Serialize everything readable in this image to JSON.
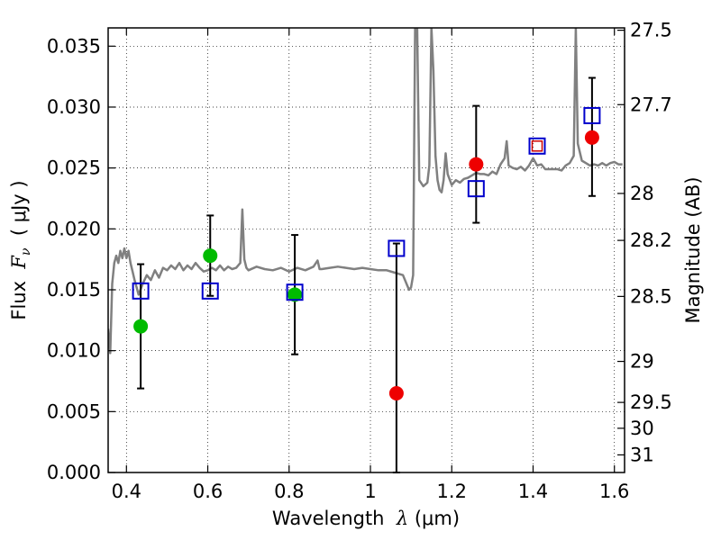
{
  "chart_data": {
    "type": "scatter",
    "xlabel": {
      "pre": "Wavelength  ",
      "sym": "λ",
      "post": " (μm)"
    },
    "ylabel": {
      "pre": "Flux  ",
      "sym": "F",
      "sub": "ν",
      "post": "  ( μJy )"
    },
    "ylabel_right": "Magnitude (AB)",
    "xlim": [
      0.355,
      1.625
    ],
    "ylim": [
      0,
      0.0365
    ],
    "grid": true,
    "x_ticks": [
      {
        "v": 0.4,
        "label": "0.4"
      },
      {
        "v": 0.6,
        "label": "0.6"
      },
      {
        "v": 0.8,
        "label": "0.8"
      },
      {
        "v": 1.0,
        "label": "1"
      },
      {
        "v": 1.2,
        "label": "1.2"
      },
      {
        "v": 1.4,
        "label": "1.4"
      },
      {
        "v": 1.6,
        "label": "1.6"
      }
    ],
    "y_ticks": [
      {
        "v": 0.0,
        "label": "0.000"
      },
      {
        "v": 0.005,
        "label": "0.005"
      },
      {
        "v": 0.01,
        "label": "0.010"
      },
      {
        "v": 0.015,
        "label": "0.015"
      },
      {
        "v": 0.02,
        "label": "0.020"
      },
      {
        "v": 0.025,
        "label": "0.025"
      },
      {
        "v": 0.03,
        "label": "0.030"
      },
      {
        "v": 0.035,
        "label": "0.035"
      }
    ],
    "right_ticks": [
      {
        "mag": 27.5,
        "label": "27.5"
      },
      {
        "mag": 27.7,
        "label": "27.7"
      },
      {
        "mag": 28,
        "label": "28"
      },
      {
        "mag": 28.2,
        "label": "28.2"
      },
      {
        "mag": 28.5,
        "label": "28.5"
      },
      {
        "mag": 29,
        "label": "29"
      },
      {
        "mag": 29.5,
        "label": "29.5"
      },
      {
        "mag": 30,
        "label": "30"
      },
      {
        "mag": 31,
        "label": "31"
      }
    ],
    "colors": {
      "spectrum": "#808080",
      "square": "#0000cc",
      "square_inner": "#cc0000",
      "green": "#00bb00",
      "red": "#ee0000",
      "errorbar": "#000000"
    },
    "spectrum": {
      "x": [
        0.355,
        0.36,
        0.365,
        0.37,
        0.375,
        0.38,
        0.385,
        0.39,
        0.395,
        0.4,
        0.405,
        0.41,
        0.415,
        0.42,
        0.425,
        0.43,
        0.44,
        0.45,
        0.46,
        0.47,
        0.48,
        0.49,
        0.5,
        0.51,
        0.52,
        0.53,
        0.54,
        0.55,
        0.56,
        0.57,
        0.58,
        0.59,
        0.6,
        0.61,
        0.62,
        0.63,
        0.64,
        0.65,
        0.66,
        0.67,
        0.68,
        0.685,
        0.69,
        0.695,
        0.7,
        0.72,
        0.74,
        0.76,
        0.78,
        0.8,
        0.82,
        0.84,
        0.86,
        0.87,
        0.875,
        0.88,
        0.9,
        0.92,
        0.94,
        0.96,
        0.98,
        1.0,
        1.02,
        1.04,
        1.06,
        1.08,
        1.09,
        1.095,
        1.1,
        1.105,
        1.11,
        1.115,
        1.12,
        1.13,
        1.14,
        1.145,
        1.15,
        1.155,
        1.16,
        1.165,
        1.17,
        1.175,
        1.18,
        1.185,
        1.19,
        1.2,
        1.21,
        1.22,
        1.23,
        1.24,
        1.25,
        1.26,
        1.27,
        1.28,
        1.29,
        1.3,
        1.31,
        1.32,
        1.33,
        1.335,
        1.34,
        1.35,
        1.36,
        1.37,
        1.38,
        1.39,
        1.4,
        1.41,
        1.42,
        1.43,
        1.44,
        1.45,
        1.46,
        1.47,
        1.48,
        1.49,
        1.5,
        1.505,
        1.51,
        1.52,
        1.53,
        1.54,
        1.55,
        1.56,
        1.57,
        1.58,
        1.59,
        1.6,
        1.61,
        1.62
      ],
      "y": [
        0.0118,
        0.0098,
        0.0155,
        0.0172,
        0.0178,
        0.0172,
        0.0182,
        0.0176,
        0.0184,
        0.0176,
        0.0182,
        0.0172,
        0.0165,
        0.0158,
        0.0152,
        0.0146,
        0.0155,
        0.0162,
        0.0158,
        0.0166,
        0.016,
        0.0168,
        0.0166,
        0.017,
        0.0167,
        0.0172,
        0.0166,
        0.017,
        0.0167,
        0.0172,
        0.0168,
        0.0165,
        0.0166,
        0.0168,
        0.0166,
        0.017,
        0.0166,
        0.0169,
        0.0167,
        0.0168,
        0.0172,
        0.0216,
        0.0175,
        0.0168,
        0.0166,
        0.0169,
        0.0167,
        0.0166,
        0.0168,
        0.0165,
        0.0168,
        0.0166,
        0.0169,
        0.0174,
        0.0167,
        0.0167,
        0.0168,
        0.0169,
        0.0168,
        0.0167,
        0.0168,
        0.0167,
        0.0166,
        0.0166,
        0.0164,
        0.0162,
        0.0154,
        0.015,
        0.0152,
        0.0162,
        0.0365,
        0.0365,
        0.024,
        0.0235,
        0.0238,
        0.0252,
        0.0365,
        0.033,
        0.026,
        0.024,
        0.0232,
        0.023,
        0.024,
        0.0262,
        0.0245,
        0.0236,
        0.024,
        0.0238,
        0.0241,
        0.0242,
        0.0244,
        0.0246,
        0.0245,
        0.0245,
        0.0244,
        0.0247,
        0.0245,
        0.0253,
        0.0258,
        0.0272,
        0.0252,
        0.025,
        0.0249,
        0.0251,
        0.0248,
        0.0252,
        0.0258,
        0.0252,
        0.0253,
        0.0249,
        0.0249,
        0.0249,
        0.0249,
        0.0248,
        0.0252,
        0.0254,
        0.026,
        0.0365,
        0.027,
        0.0256,
        0.0254,
        0.0252,
        0.0253,
        0.0252,
        0.0254,
        0.0252,
        0.0254,
        0.0255,
        0.0253,
        0.0253
      ]
    },
    "squares": [
      {
        "x": 0.435,
        "y": 0.0149
      },
      {
        "x": 0.606,
        "y": 0.0149
      },
      {
        "x": 0.814,
        "y": 0.0148
      },
      {
        "x": 1.064,
        "y": 0.0184
      },
      {
        "x": 1.26,
        "y": 0.0233
      },
      {
        "x": 1.41,
        "y": 0.0268,
        "inner": true
      },
      {
        "x": 1.545,
        "y": 0.0293
      }
    ],
    "green_points": [
      {
        "x": 0.435,
        "y": 0.012
      },
      {
        "x": 0.606,
        "y": 0.0178
      },
      {
        "x": 0.814,
        "y": 0.0146
      }
    ],
    "red_points": [
      {
        "x": 1.064,
        "y": 0.0065
      },
      {
        "x": 1.26,
        "y": 0.0253
      },
      {
        "x": 1.545,
        "y": 0.0275
      }
    ],
    "error_bars": [
      {
        "x": 0.435,
        "lo": 0.0069,
        "hi": 0.0171
      },
      {
        "x": 0.606,
        "lo": 0.0145,
        "hi": 0.0211
      },
      {
        "x": 0.814,
        "lo": 0.0097,
        "hi": 0.0195
      },
      {
        "x": 1.064,
        "lo": 0.0,
        "hi": 0.0188
      },
      {
        "x": 1.26,
        "lo": 0.0205,
        "hi": 0.0301
      },
      {
        "x": 1.545,
        "lo": 0.0227,
        "hi": 0.0324
      }
    ]
  }
}
